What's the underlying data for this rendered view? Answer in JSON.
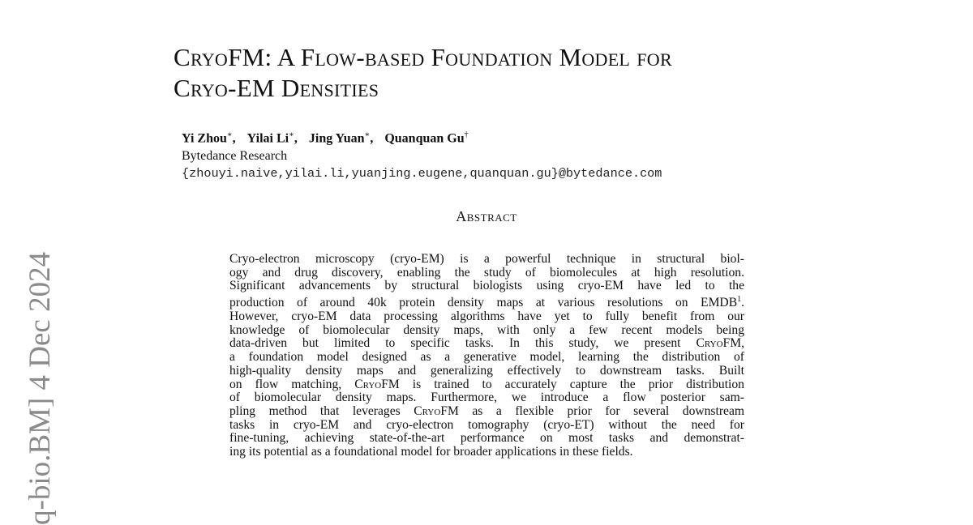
{
  "sidebar_stamp": "q-bio.BM]  4 Dec 2024",
  "title": {
    "line1": "CryoFM: A Flow-based Foundation Model for",
    "line2": "Cryo-EM Densities"
  },
  "authors": [
    {
      "name": "Yi Zhou",
      "mark": "∗"
    },
    {
      "name": "Yilai Li",
      "mark": "∗"
    },
    {
      "name": "Jing Yuan",
      "mark": "∗"
    },
    {
      "name": "Quanquan Gu",
      "mark": "†"
    }
  ],
  "affiliation": "Bytedance Research",
  "email": "{zhouyi.naive,yilai.li,yuanjing.eugene,quanquan.gu}@bytedance.com",
  "abstract_heading": "Abstract",
  "abstract_lines": [
    "Cryo-electron microscopy (cryo-EM) is a powerful technique in structural biol-",
    "ogy and drug discovery, enabling the study of biomolecules at high resolution.",
    "Significant advancements by structural biologists using cryo-EM have led to the",
    "production of around 40k protein density maps at various resolutions on EMDB¹.",
    "However, cryo-EM data processing algorithms have yet to fully benefit from our",
    "knowledge of biomolecular density maps, with only a few recent models being",
    "data-driven but limited to specific tasks.  In this study, we present CryoFM,",
    "a foundation model designed as a generative model, learning the distribution of",
    "high-quality density maps and generalizing effectively to downstream tasks. Built",
    "on flow matching, CryoFM is trained to accurately capture the prior distribution",
    "of biomolecular density maps.  Furthermore, we introduce a flow posterior sam-",
    "pling method that leverages CryoFM as a flexible prior for several downstream",
    "tasks in cryo-EM and cryo-electron tomography (cryo-ET) without the need for",
    "fine-tuning, achieving state-of-the-art performance on most tasks and demonstrat-",
    "ing its potential as a foundational model for broader applications in these fields."
  ]
}
